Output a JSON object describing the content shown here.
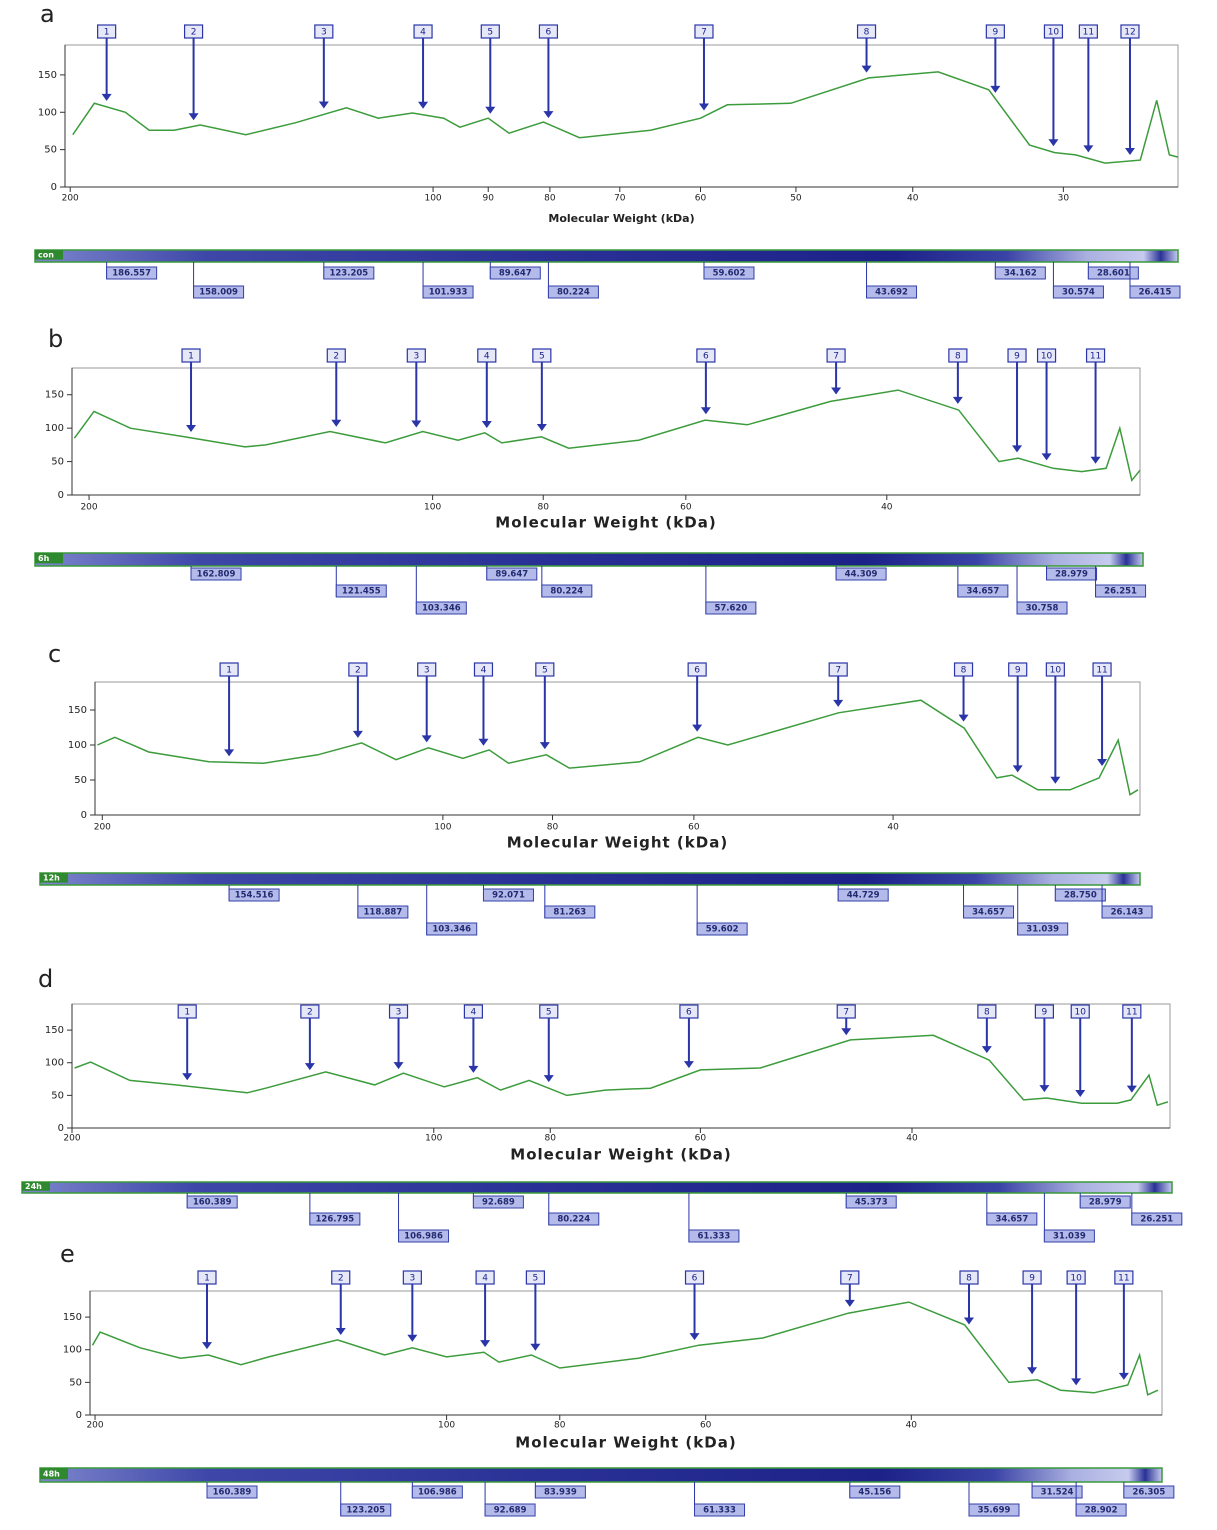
{
  "chart_data": [
    {
      "type": "line",
      "panel": "a",
      "x_label": "Molecular Weight (kDa)",
      "log_x": true,
      "color": "#3c9c3c",
      "lane": "con",
      "xlim": [
        202,
        24.1
      ],
      "ylim": [
        0,
        190
      ],
      "xticks": [
        200,
        100,
        90,
        80,
        70,
        60,
        50,
        40,
        30
      ],
      "yticks": [
        0,
        50,
        100,
        150
      ],
      "x": [
        199,
        191,
        180,
        172,
        164,
        156,
        143,
        130,
        118,
        111,
        104,
        98,
        95,
        90,
        86.5,
        81,
        75.6,
        66,
        60,
        57,
        50.5,
        43.5,
        38.1,
        34.6,
        32.0,
        30.5,
        29.3,
        27.7,
        25.9,
        25.1,
        24.5,
        24.1
      ],
      "values": [
        70,
        112,
        100,
        76,
        76,
        83,
        70,
        86,
        106,
        92,
        99,
        92,
        80,
        92,
        72,
        87,
        66,
        76,
        92,
        110,
        112,
        146,
        154,
        130,
        56,
        46,
        43,
        32,
        36,
        116,
        43,
        40
      ],
      "peaks": {
        "labels": [
          "1",
          "2",
          "3",
          "4",
          "5",
          "6",
          "7",
          "8",
          "9",
          "10",
          "11",
          "12"
        ],
        "x": [
          186.557,
          158.009,
          123.205,
          101.933,
          89.647,
          80.224,
          59.602,
          43.692,
          34.162,
          30.574,
          28.601,
          26.415
        ],
        "x_labels": [
          "186.557",
          "158.009",
          "123.205",
          "101.933",
          "89.647",
          "80.224",
          "59.602",
          "43.692",
          "34.162",
          "30.574",
          "28.601",
          "26.415"
        ]
      }
    },
    {
      "type": "line",
      "panel": "b",
      "x_label": "Molecular Weight (kDa)",
      "log_x": true,
      "color": "#3c9c3c",
      "lane": "6h",
      "xlim": [
        207,
        24
      ],
      "ylim": [
        0,
        190
      ],
      "xticks": [
        200,
        100,
        80,
        60,
        40
      ],
      "yticks": [
        0,
        50,
        100,
        150
      ],
      "x": [
        206,
        198,
        184,
        165,
        146,
        140,
        123,
        110,
        102,
        95,
        90,
        87,
        80.3,
        76,
        66,
        57.7,
        53,
        44.8,
        39.1,
        34.6,
        31.9,
        30.7,
        28.6,
        27.0,
        25.7,
        25.0,
        24.4,
        24.0
      ],
      "values": [
        85,
        125,
        100,
        87,
        72,
        75,
        95,
        78,
        95,
        82,
        93,
        78,
        87,
        70,
        82,
        112,
        105,
        140,
        157,
        127,
        50,
        55,
        40,
        35,
        40,
        100,
        22,
        37
      ],
      "peaks": {
        "labels": [
          "1",
          "2",
          "3",
          "4",
          "5",
          "6",
          "7",
          "8",
          "9",
          "10",
          "11"
        ],
        "x": [
          162.809,
          121.455,
          103.346,
          89.647,
          80.224,
          57.62,
          44.309,
          34.657,
          30.758,
          28.979,
          26.251
        ],
        "x_labels": [
          "162.809",
          "121.455",
          "103.346",
          "89.647",
          "80.224",
          "57.620",
          "44.309",
          "34.657",
          "30.758",
          "28.979",
          "26.251"
        ]
      }
    },
    {
      "type": "line",
      "panel": "c",
      "x_label": "Molecular Weight (kDa)",
      "log_x": true,
      "color": "#3c9c3c",
      "lane": "12h",
      "xlim": [
        203,
        24.2
      ],
      "ylim": [
        0,
        190
      ],
      "xticks": [
        200,
        100,
        80,
        60,
        40
      ],
      "yticks": [
        0,
        50,
        100,
        150
      ],
      "x": [
        202,
        195,
        182,
        161,
        144,
        129,
        118,
        110,
        103,
        96,
        91,
        87.5,
        81,
        77.3,
        67,
        59.5,
        56,
        44.7,
        37.8,
        34.6,
        32.4,
        31.4,
        29.8,
        27.9,
        26.3,
        25.3,
        24.7,
        24.3
      ],
      "values": [
        100,
        111,
        90,
        76,
        74,
        86,
        103,
        79,
        96,
        81,
        93,
        74,
        86,
        67,
        76,
        111,
        100,
        146,
        164,
        124,
        53,
        57,
        36,
        36,
        53,
        107,
        29,
        36
      ],
      "peaks": {
        "labels": [
          "1",
          "2",
          "3",
          "4",
          "5",
          "6",
          "7",
          "8",
          "9",
          "10",
          "11"
        ],
        "x": [
          154.516,
          118.887,
          103.346,
          92.071,
          81.263,
          59.602,
          44.729,
          34.657,
          31.039,
          28.75,
          26.143
        ],
        "x_labels": [
          "154.516",
          "118.887",
          "103.346",
          "92.071",
          "81.263",
          "59.602",
          "44.729",
          "34.657",
          "31.039",
          "28.750",
          "26.143"
        ]
      }
    },
    {
      "type": "line",
      "panel": "d",
      "x_label": "Molecular Weight (kDa)",
      "log_x": true,
      "color": "#3c9c3c",
      "lane": "24h",
      "xlim": [
        200,
        24.4
      ],
      "ylim": [
        0,
        190
      ],
      "xticks": [
        200,
        100,
        80,
        60,
        40
      ],
      "yticks": [
        0,
        50,
        100,
        150
      ],
      "x": [
        199,
        193,
        179,
        164,
        143,
        138,
        123,
        112,
        106,
        98,
        92,
        88,
        83.3,
        77.5,
        72,
        66,
        60,
        53.5,
        45,
        38.4,
        34.5,
        32.3,
        30.9,
        28.9,
        27.0,
        26.3,
        25.4,
        25.0,
        24.5
      ],
      "values": [
        92,
        101,
        73,
        66,
        54,
        61,
        86,
        66,
        84,
        63,
        77,
        58,
        73,
        50,
        58,
        61,
        89,
        92,
        135,
        142,
        104,
        43,
        46,
        38,
        38,
        43,
        81,
        35,
        40
      ],
      "peaks": {
        "labels": [
          "1",
          "2",
          "3",
          "4",
          "5",
          "6",
          "7",
          "8",
          "9",
          "10",
          "11"
        ],
        "x": [
          160.389,
          126.795,
          106.986,
          92.689,
          80.224,
          61.333,
          45.373,
          34.657,
          31.039,
          28.979,
          26.251
        ],
        "x_labels": [
          "160.389",
          "126.795",
          "106.986",
          "92.689",
          "80.224",
          "61.333",
          "45.373",
          "34.657",
          "31.039",
          "28.979",
          "26.251"
        ]
      }
    },
    {
      "type": "line",
      "panel": "e",
      "x_label": "Molecular Weight (kDa)",
      "log_x": true,
      "color": "#3c9c3c",
      "lane": "48h",
      "xlim": [
        202,
        24.4
      ],
      "ylim": [
        0,
        190
      ],
      "xticks": [
        200,
        100,
        80,
        60,
        40
      ],
      "yticks": [
        0,
        50,
        100,
        150
      ],
      "x": [
        201,
        198,
        183,
        169,
        160,
        150,
        142,
        124,
        113,
        107,
        100,
        92.9,
        90.2,
        84.6,
        80,
        68.5,
        60.8,
        53.6,
        45.3,
        40.2,
        36.0,
        33.0,
        31.2,
        29.8,
        27.9,
        26.1,
        25.5,
        25.1,
        24.6
      ],
      "values": [
        107,
        127,
        103,
        87,
        92,
        77,
        89,
        115,
        92,
        103,
        89,
        96,
        81,
        92,
        72,
        87,
        107,
        118,
        156,
        173,
        138,
        50,
        54,
        38,
        34,
        46,
        92,
        31,
        38
      ],
      "peaks": {
        "labels": [
          "1",
          "2",
          "3",
          "4",
          "5",
          "6",
          "7",
          "8",
          "9",
          "10",
          "11"
        ],
        "x": [
          160.389,
          123.205,
          106.986,
          92.689,
          83.939,
          61.333,
          45.156,
          35.699,
          31.524,
          28.902,
          26.305
        ],
        "x_labels": [
          "160.389",
          "123.205",
          "106.986",
          "92.689",
          "83.939",
          "61.333",
          "45.156",
          "35.699",
          "31.524",
          "28.902",
          "26.305"
        ]
      }
    }
  ]
}
